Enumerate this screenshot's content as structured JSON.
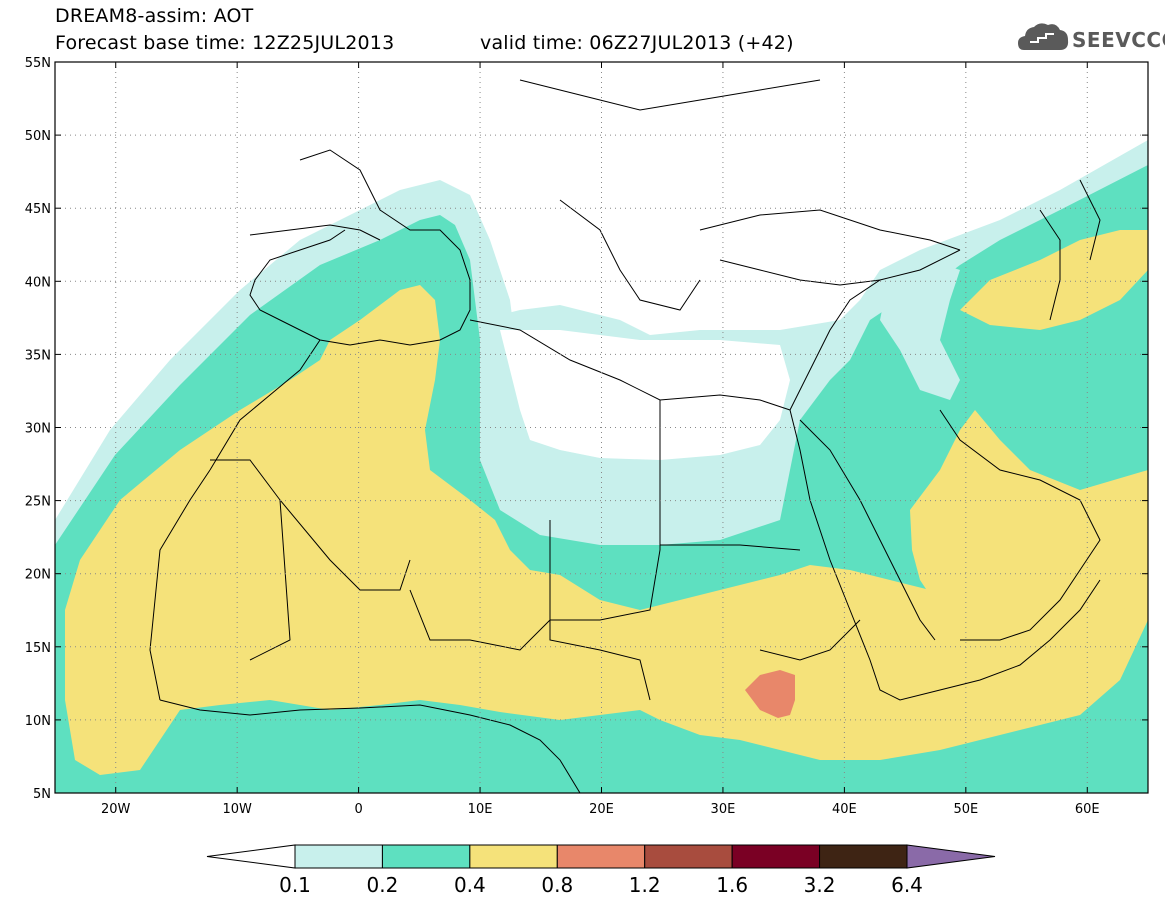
{
  "header": {
    "title": "DREAM8-assim: AOT",
    "forecast_base": "Forecast base time: 12Z25JUL2013",
    "valid_time": "valid time: 06Z27JUL2013 (+42)"
  },
  "logo": {
    "text": "SEEVCCC",
    "icon": "cloud-icon"
  },
  "map": {
    "lat_labels": [
      "55N",
      "50N",
      "45N",
      "40N",
      "35N",
      "30N",
      "25N",
      "20N",
      "15N",
      "10N",
      "5N"
    ],
    "lon_labels": [
      "20W",
      "10W",
      "0",
      "10E",
      "20E",
      "30E",
      "40E",
      "50E",
      "60E"
    ]
  },
  "colorbar": {
    "labels": [
      "0.1",
      "0.2",
      "0.4",
      "0.8",
      "1.2",
      "1.6",
      "3.2",
      "6.4"
    ],
    "colors": [
      "#ffffff",
      "#c8f0ec",
      "#5ee0c0",
      "#f5e27a",
      "#e8876a",
      "#a84c3e",
      "#7a0024",
      "#3e2414",
      "#8a6aa8"
    ]
  },
  "colors": {
    "aot_0_1": "#c8f0ec",
    "aot_0_2": "#5ee0c0",
    "aot_0_4": "#f5e27a",
    "aot_0_8": "#e8876a"
  }
}
